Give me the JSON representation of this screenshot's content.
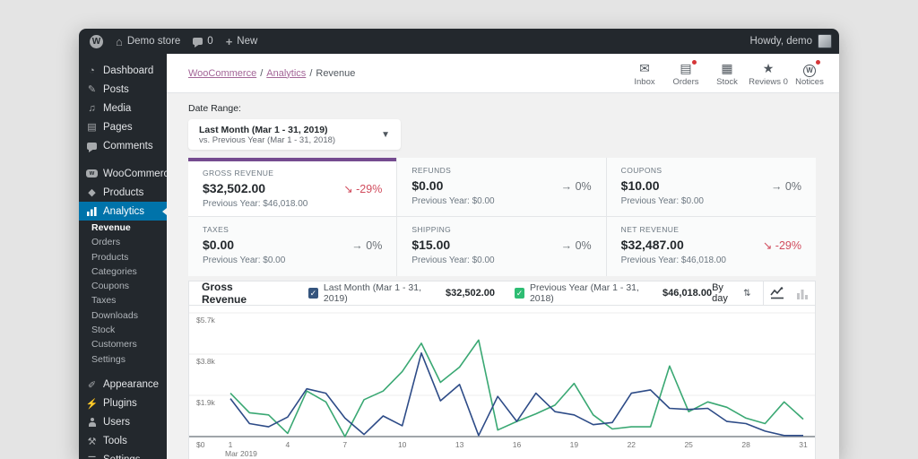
{
  "admin_bar": {
    "site_name": "Demo store",
    "comments_count": "0",
    "new_label": "New",
    "howdy": "Howdy, demo"
  },
  "sidebar": {
    "items": [
      {
        "label": "Dashboard",
        "icon": "gauge-icon"
      },
      {
        "label": "Posts",
        "icon": "pushpin-icon"
      },
      {
        "label": "Media",
        "icon": "media-icon"
      },
      {
        "label": "Pages",
        "icon": "pages-icon"
      },
      {
        "label": "Comments",
        "icon": "comment-icon"
      },
      {
        "label": "WooCommerce",
        "icon": "woocommerce-icon",
        "group_start": true
      },
      {
        "label": "Products",
        "icon": "products-icon"
      },
      {
        "label": "Analytics",
        "icon": "bar-chart-icon",
        "active": true
      }
    ],
    "analytics_submenu": [
      {
        "label": "Revenue",
        "selected": true
      },
      {
        "label": "Orders"
      },
      {
        "label": "Products"
      },
      {
        "label": "Categories"
      },
      {
        "label": "Coupons"
      },
      {
        "label": "Taxes"
      },
      {
        "label": "Downloads"
      },
      {
        "label": "Stock"
      },
      {
        "label": "Customers"
      },
      {
        "label": "Settings"
      }
    ],
    "bottom_items": [
      {
        "label": "Appearance",
        "icon": "paintbrush-icon"
      },
      {
        "label": "Plugins",
        "icon": "plug-icon"
      },
      {
        "label": "Users",
        "icon": "person-icon"
      },
      {
        "label": "Tools",
        "icon": "wrench-icon"
      },
      {
        "label": "Settings",
        "icon": "sliders-icon"
      }
    ]
  },
  "header": {
    "breadcrumb": [
      {
        "label": "WooCommerce",
        "link": true
      },
      {
        "label": "Analytics",
        "link": true
      },
      {
        "label": "Revenue",
        "link": false
      }
    ],
    "activity": [
      {
        "label": "Inbox",
        "icon": "envelope-icon",
        "badge": false
      },
      {
        "label": "Orders",
        "icon": "document-icon",
        "badge": true
      },
      {
        "label": "Stock",
        "icon": "clipboard-icon",
        "badge": false
      },
      {
        "label": "Reviews 0",
        "icon": "star-icon",
        "badge": false
      },
      {
        "label": "Notices",
        "icon": "wordpress-icon",
        "badge": true
      }
    ]
  },
  "date_range": {
    "label": "Date Range:",
    "primary": "Last Month (Mar 1 - 31, 2019)",
    "secondary": "vs. Previous Year (Mar 1 - 31, 2018)"
  },
  "summary_tiles": [
    {
      "label": "GROSS REVENUE",
      "value": "$32,502.00",
      "delta": "-29%",
      "direction": "down",
      "previous": "Previous Year: $46,018.00",
      "selected": true
    },
    {
      "label": "REFUNDS",
      "value": "$0.00",
      "delta": "0%",
      "direction": "flat",
      "previous": "Previous Year: $0.00",
      "selected": false
    },
    {
      "label": "COUPONS",
      "value": "$10.00",
      "delta": "0%",
      "direction": "flat",
      "previous": "Previous Year: $0.00",
      "selected": false
    },
    {
      "label": "TAXES",
      "value": "$0.00",
      "delta": "0%",
      "direction": "flat",
      "previous": "Previous Year: $0.00",
      "selected": false
    },
    {
      "label": "SHIPPING",
      "value": "$15.00",
      "delta": "0%",
      "direction": "flat",
      "previous": "Previous Year: $0.00",
      "selected": false
    },
    {
      "label": "NET REVENUE",
      "value": "$32,487.00",
      "delta": "-29%",
      "direction": "down",
      "previous": "Previous Year: $46,018.00",
      "selected": false
    }
  ],
  "chart": {
    "title": "Gross Revenue",
    "interval": "By day",
    "legend": [
      {
        "label": "Last Month (Mar 1 - 31, 2019)",
        "value": "$32,502.00",
        "color": "#35557e"
      },
      {
        "label": "Previous Year (Mar 1 - 31, 2018)",
        "value": "$46,018.00",
        "color": "#2ebd73"
      }
    ]
  },
  "chart_data": {
    "type": "line",
    "title": "Gross Revenue",
    "xlabel": "Mar 2019",
    "ylabel": "",
    "ylim": [
      0,
      5700
    ],
    "grid": true,
    "legend_position": "top",
    "x": [
      1,
      2,
      3,
      4,
      5,
      6,
      7,
      8,
      9,
      10,
      11,
      12,
      13,
      14,
      15,
      16,
      17,
      18,
      19,
      20,
      21,
      22,
      23,
      24,
      25,
      26,
      27,
      28,
      29,
      30,
      31
    ],
    "x_ticks": [
      1,
      4,
      7,
      10,
      13,
      16,
      19,
      22,
      25,
      28,
      31
    ],
    "y_ticks": [
      {
        "value": 5700,
        "label": "$5.7k"
      },
      {
        "value": 3800,
        "label": "$3.8k"
      },
      {
        "value": 1900,
        "label": "$1.9k"
      },
      {
        "value": 0,
        "label": "$0"
      }
    ],
    "series": [
      {
        "name": "Last Month (Mar 1 - 31, 2019)",
        "total": 32502,
        "color": "#2d4b87",
        "values": [
          1750,
          600,
          450,
          900,
          2200,
          2000,
          850,
          100,
          950,
          500,
          3850,
          1650,
          2400,
          50,
          1850,
          700,
          2000,
          1150,
          1000,
          550,
          650,
          2000,
          2150,
          1300,
          1250,
          1300,
          700,
          600,
          250,
          50,
          50
        ]
      },
      {
        "name": "Previous Year (Mar 1 - 31, 2018)",
        "total": 46018,
        "color": "#3aa873",
        "values": [
          2000,
          1100,
          1000,
          150,
          2100,
          1600,
          0,
          1700,
          2100,
          3000,
          4300,
          2500,
          3200,
          4450,
          300,
          700,
          1050,
          1450,
          2450,
          1000,
          350,
          450,
          450,
          3250,
          1150,
          1600,
          1350,
          850,
          600,
          1600,
          800
        ]
      }
    ]
  },
  "colors": {
    "accent_purple": "#744b8f",
    "active_blue": "#0073aa",
    "negative_red": "#d14d5e",
    "primary_line": "#2d4b87",
    "secondary_line": "#3aa873"
  }
}
